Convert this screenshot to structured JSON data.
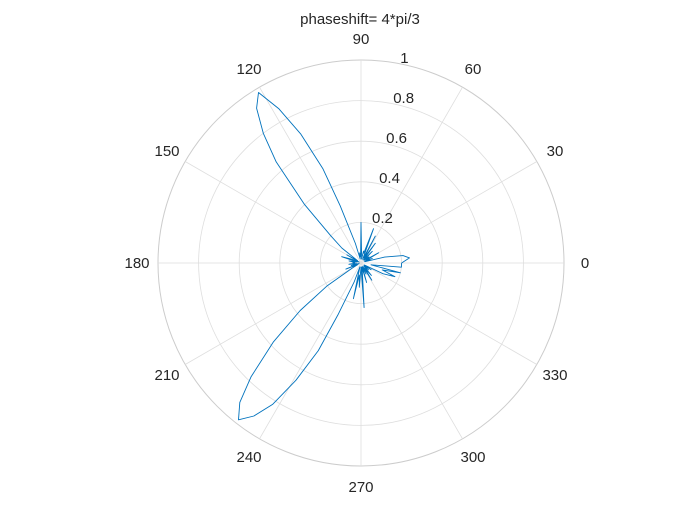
{
  "figure": {
    "background": "#ffffff"
  },
  "chart_data": {
    "type": "line",
    "subtype": "polar",
    "title": "phaseshift= 4*pi/3",
    "theta_units": "degrees",
    "theta_ticks": [
      0,
      30,
      60,
      90,
      120,
      150,
      180,
      210,
      240,
      270,
      300,
      330
    ],
    "theta_tick_labels": [
      "0",
      "30",
      "60",
      "90",
      "120",
      "150",
      "180",
      "210",
      "240",
      "270",
      "300",
      "330"
    ],
    "r_lim": [
      0,
      1
    ],
    "r_ticks": [
      0.2,
      0.4,
      0.6,
      0.8,
      1
    ],
    "r_tick_labels": [
      "0.2",
      "0.4",
      "0.6",
      "0.8",
      "1"
    ],
    "r_tick_label_angle_deg": 80,
    "grid": true,
    "line_color": "#0072BD",
    "grid_color": "#dedede",
    "axis_color": "#cccccc",
    "series": [
      {
        "theta": [
          0,
          6,
          10,
          14,
          18,
          22,
          26,
          30,
          34,
          38,
          42,
          46,
          50,
          54,
          58,
          62,
          66,
          70,
          74,
          78,
          82,
          86,
          90,
          94,
          98,
          102,
          106,
          110,
          112,
          115,
          118,
          121,
          124,
          127,
          130,
          134,
          138,
          142,
          146,
          150,
          154,
          158,
          162,
          166,
          170,
          174,
          178,
          182,
          186,
          190,
          194,
          198,
          202,
          206,
          210,
          214,
          218,
          222,
          226,
          229,
          232,
          235,
          238,
          241,
          244,
          246,
          250,
          254,
          258,
          262,
          266,
          270,
          274,
          278,
          282,
          286,
          290,
          294,
          298,
          302,
          306,
          310,
          314,
          318,
          322,
          326,
          330,
          334,
          338,
          342,
          346,
          350,
          354,
          360
        ],
        "r": [
          0.2,
          0.24,
          0.21,
          0.12,
          0.02,
          0.06,
          0.02,
          0.1,
          0.03,
          0.05,
          0.02,
          0.08,
          0.02,
          0.12,
          0.03,
          0.15,
          0.02,
          0.18,
          0.05,
          0.06,
          0.02,
          0.04,
          0.2,
          0.03,
          0.05,
          0.02,
          0.1,
          0.3,
          0.5,
          0.7,
          0.86,
          0.98,
          0.92,
          0.8,
          0.65,
          0.4,
          0.2,
          0.12,
          0.02,
          0.08,
          0.01,
          0.05,
          0.1,
          0.02,
          0.06,
          0.03,
          0.04,
          0.03,
          0.06,
          0.02,
          0.05,
          0.01,
          0.08,
          0.02,
          0.05,
          0.2,
          0.38,
          0.58,
          0.78,
          0.91,
          0.98,
          0.92,
          0.82,
          0.66,
          0.48,
          0.28,
          0.1,
          0.02,
          0.18,
          0.06,
          0.12,
          0.02,
          0.22,
          0.05,
          0.02,
          0.1,
          0.02,
          0.06,
          0.02,
          0.1,
          0.03,
          0.08,
          0.02,
          0.05,
          0.02,
          0.06,
          0.02,
          0.12,
          0.18,
          0.11,
          0.2,
          0.05,
          0.2,
          0.2
        ]
      }
    ]
  }
}
